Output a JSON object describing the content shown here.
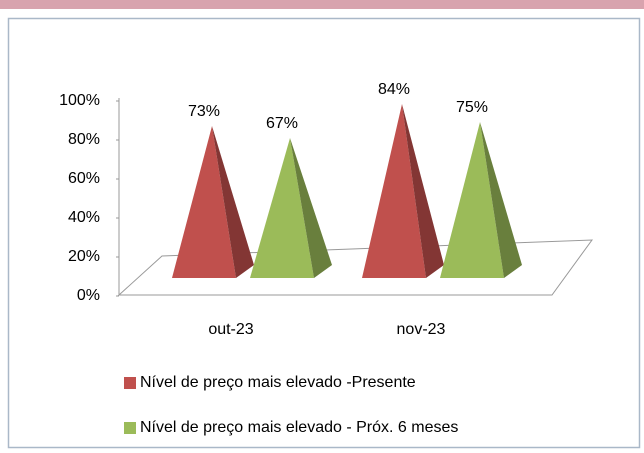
{
  "chart_data": {
    "type": "pyramid",
    "categories": [
      "out-23",
      "nov-23"
    ],
    "series": [
      {
        "name": "Nível de preço mais elevado -Presente",
        "color": "#c0504d",
        "values": [
          73,
          84
        ],
        "value_labels": [
          "73%",
          "84%"
        ]
      },
      {
        "name": "Nível de preço mais elevado - Próx. 6 meses",
        "color": "#9bbb59",
        "values": [
          67,
          75
        ],
        "value_labels": [
          "67%",
          "75%"
        ]
      }
    ],
    "ylim": [
      0,
      100
    ],
    "yticks": [
      {
        "value": 0,
        "label": "0%"
      },
      {
        "value": 20,
        "label": "20%"
      },
      {
        "value": 40,
        "label": "40%"
      },
      {
        "value": 60,
        "label": "60%"
      },
      {
        "value": 80,
        "label": "80%"
      },
      {
        "value": 100,
        "label": "100%"
      }
    ],
    "legend": "bottom"
  }
}
